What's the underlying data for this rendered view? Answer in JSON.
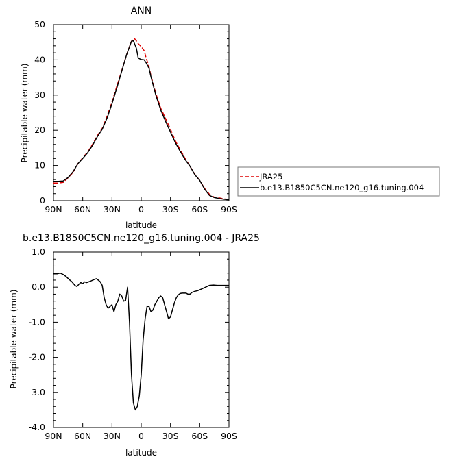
{
  "chart_data": [
    {
      "type": "line",
      "title": "ANN",
      "xlabel": "latitude",
      "ylabel": "Precipitable water (mm)",
      "xlim": [
        90,
        -90
      ],
      "ylim": [
        0,
        50
      ],
      "x_ticks": [
        90,
        60,
        30,
        0,
        -30,
        -60,
        -90
      ],
      "x_tick_labels": [
        "90N",
        "60N",
        "30N",
        "0",
        "30S",
        "60S",
        "90S"
      ],
      "y_ticks": [
        0,
        10,
        20,
        30,
        40,
        50
      ],
      "y_tick_labels": [
        "0",
        "10",
        "20",
        "30",
        "40",
        "50"
      ],
      "legend_position": "outside-right",
      "series": [
        {
          "name": "JRA25",
          "color": "#dd0000",
          "dash": "dashed",
          "x": [
            90,
            85,
            80,
            75,
            70,
            65,
            60,
            55,
            50,
            45,
            40,
            35,
            30,
            25,
            20,
            15,
            10,
            7,
            5,
            3,
            0,
            -3,
            -5,
            -8,
            -10,
            -15,
            -20,
            -25,
            -30,
            -35,
            -40,
            -45,
            -50,
            -55,
            -60,
            -65,
            -70,
            -75,
            -80,
            -85,
            -88,
            -90
          ],
          "values": [
            5.0,
            5.0,
            5.2,
            6.5,
            8.0,
            10.5,
            12.2,
            13.8,
            16.0,
            18.5,
            20.5,
            24.0,
            28.0,
            32.5,
            37.0,
            41.5,
            45.3,
            46.1,
            45.4,
            44.6,
            43.8,
            42.6,
            40.6,
            38.0,
            35.5,
            30.5,
            26.3,
            23.3,
            20.3,
            17.0,
            14.5,
            12.0,
            9.8,
            7.5,
            5.8,
            3.5,
            1.8,
            1.0,
            0.8,
            0.5,
            0.4,
            0.3
          ]
        },
        {
          "name": "b.e13.B1850C5CN.ne120_g16.tuning.004",
          "color": "#000000",
          "dash": "solid",
          "x": [
            90,
            85,
            80,
            75,
            70,
            65,
            60,
            55,
            50,
            45,
            40,
            35,
            30,
            25,
            20,
            15,
            10,
            8,
            5,
            3,
            0,
            -3,
            -5,
            -8,
            -10,
            -15,
            -20,
            -25,
            -30,
            -35,
            -40,
            -45,
            -50,
            -55,
            -60,
            -65,
            -70,
            -75,
            -80,
            -85,
            -88,
            -90
          ],
          "values": [
            5.5,
            5.5,
            5.6,
            6.6,
            8.2,
            10.5,
            12.0,
            13.6,
            15.7,
            18.2,
            20.3,
            23.5,
            27.5,
            32.0,
            36.8,
            41.5,
            45.3,
            45.4,
            43.3,
            40.5,
            40.1,
            40.0,
            39.2,
            37.6,
            35.2,
            30.0,
            25.8,
            22.5,
            19.5,
            16.5,
            14.0,
            11.7,
            9.8,
            7.4,
            5.8,
            3.3,
            1.5,
            0.9,
            0.6,
            0.4,
            0.3,
            0.3
          ]
        }
      ],
      "legend": {
        "entries": [
          "JRA25",
          "b.e13.B1850C5CN.ne120_g16.tuning.004"
        ]
      }
    },
    {
      "type": "line",
      "title": "b.e13.B1850C5CN.ne120_g16.tuning.004 - JRA25",
      "xlabel": "latitude",
      "ylabel": "Precipitable water (mm)",
      "xlim": [
        90,
        -90
      ],
      "ylim": [
        -4.0,
        1.0
      ],
      "x_ticks": [
        90,
        60,
        30,
        0,
        -30,
        -60,
        -90
      ],
      "x_tick_labels": [
        "90N",
        "60N",
        "30N",
        "0",
        "30S",
        "60S",
        "90S"
      ],
      "y_ticks": [
        1.0,
        0.0,
        -1.0,
        -2.0,
        -3.0,
        -4.0
      ],
      "y_tick_labels": [
        "1.0",
        "0.0",
        "-1.0",
        "-2.0",
        "-3.0",
        "-4.0"
      ],
      "series": [
        {
          "color": "#000000",
          "dash": "solid",
          "x": [
            90,
            86,
            83,
            80,
            77,
            74,
            71,
            68,
            66,
            64,
            62,
            60,
            58,
            56,
            52,
            48,
            46,
            44,
            42,
            40,
            38,
            36,
            34,
            32,
            30,
            28,
            26,
            24,
            22,
            20,
            18,
            16,
            14,
            12,
            10,
            8,
            6,
            4,
            2,
            1,
            0,
            -1,
            -2,
            -4,
            -6,
            -8,
            -10,
            -12,
            -14,
            -16,
            -18,
            -20,
            -22,
            -24,
            -26,
            -28,
            -30,
            -32,
            -34,
            -36,
            -38,
            -40,
            -42,
            -44,
            -46,
            -48,
            -50,
            -52,
            -55,
            -58,
            -62,
            -66,
            -70,
            -74,
            -78,
            -82,
            -86,
            -90
          ],
          "values": [
            0.38,
            0.38,
            0.4,
            0.36,
            0.3,
            0.22,
            0.15,
            0.05,
            0.02,
            0.08,
            0.13,
            0.1,
            0.15,
            0.13,
            0.17,
            0.22,
            0.24,
            0.2,
            0.15,
            0.05,
            -0.3,
            -0.5,
            -0.6,
            -0.55,
            -0.5,
            -0.7,
            -0.5,
            -0.4,
            -0.2,
            -0.25,
            -0.4,
            -0.38,
            0.0,
            -1.0,
            -2.5,
            -3.3,
            -3.5,
            -3.4,
            -3.1,
            -2.8,
            -2.5,
            -2.0,
            -1.5,
            -0.9,
            -0.55,
            -0.55,
            -0.7,
            -0.65,
            -0.5,
            -0.4,
            -0.3,
            -0.25,
            -0.3,
            -0.5,
            -0.7,
            -0.9,
            -0.85,
            -0.65,
            -0.45,
            -0.3,
            -0.22,
            -0.18,
            -0.17,
            -0.17,
            -0.17,
            -0.2,
            -0.2,
            -0.15,
            -0.12,
            -0.1,
            -0.05,
            0.0,
            0.05,
            0.06,
            0.05,
            0.05,
            0.05,
            0.05
          ]
        }
      ]
    }
  ]
}
